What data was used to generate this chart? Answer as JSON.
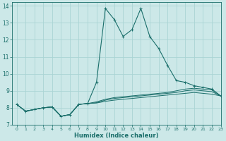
{
  "title": "",
  "xlabel": "Humidex (Indice chaleur)",
  "xlim": [
    -0.5,
    23
  ],
  "ylim": [
    7,
    14.2
  ],
  "yticks": [
    7,
    8,
    9,
    10,
    11,
    12,
    13,
    14
  ],
  "xticks": [
    0,
    1,
    2,
    3,
    4,
    5,
    6,
    7,
    8,
    9,
    10,
    11,
    12,
    13,
    14,
    15,
    16,
    17,
    18,
    19,
    20,
    21,
    22,
    23
  ],
  "bg_color": "#cce8e8",
  "grid_color": "#aad4d4",
  "line_color": "#1a6e6a",
  "lines": [
    [
      8.2,
      7.8,
      7.9,
      8.0,
      8.05,
      7.5,
      7.6,
      8.2,
      8.25,
      9.5,
      13.85,
      13.2,
      12.2,
      12.6,
      13.85,
      12.2,
      11.5,
      10.5,
      9.6,
      9.5,
      9.3,
      9.2,
      9.1,
      8.7
    ],
    [
      8.2,
      7.8,
      7.9,
      8.0,
      8.05,
      7.5,
      7.6,
      8.2,
      8.25,
      8.35,
      8.5,
      8.6,
      8.65,
      8.7,
      8.75,
      8.8,
      8.85,
      8.9,
      9.0,
      9.1,
      9.15,
      9.1,
      9.05,
      8.7
    ],
    [
      8.2,
      7.8,
      7.9,
      8.0,
      8.05,
      7.5,
      7.6,
      8.2,
      8.25,
      8.3,
      8.45,
      8.55,
      8.6,
      8.65,
      8.7,
      8.75,
      8.8,
      8.85,
      8.9,
      9.0,
      9.05,
      9.0,
      8.95,
      8.7
    ],
    [
      8.2,
      7.8,
      7.9,
      8.0,
      8.05,
      7.5,
      7.6,
      8.2,
      8.25,
      8.28,
      8.38,
      8.45,
      8.5,
      8.55,
      8.6,
      8.65,
      8.7,
      8.75,
      8.8,
      8.85,
      8.9,
      8.85,
      8.8,
      8.7
    ]
  ],
  "marker": "+",
  "markersize": 3.5,
  "markeredgewidth": 0.7
}
